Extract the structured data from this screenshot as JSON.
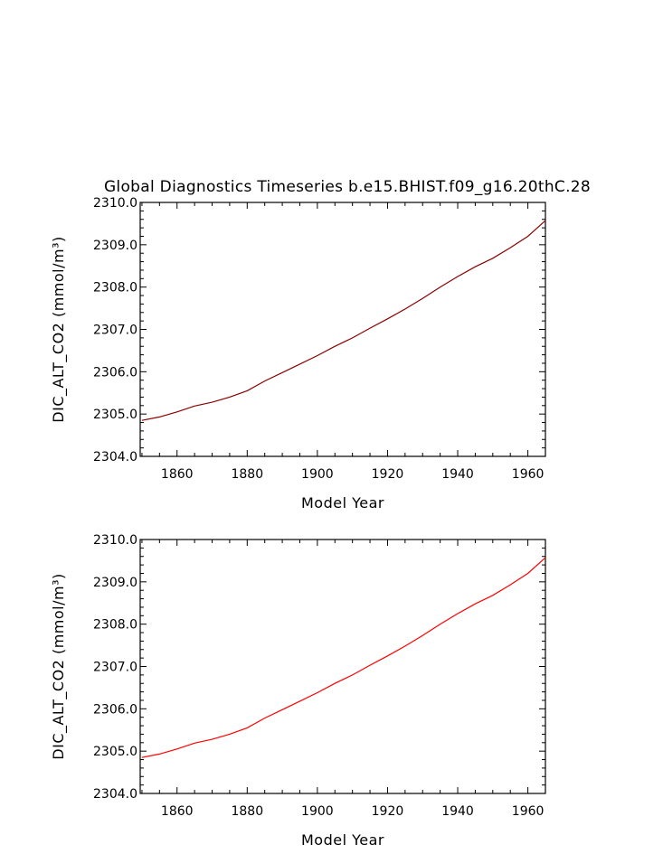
{
  "page": {
    "title": "Global Diagnostics Timeseries b.e15.BHIST.f09_g16.20thC.28"
  },
  "chart_data": [
    {
      "type": "line",
      "title": "Global Diagnostics Timeseries b.e15.BHIST.f09_g16.20thC.28",
      "xlabel": "Model Year",
      "ylabel": "DIC_ALT_CO2 (mmol/m³)",
      "xlim": [
        1849.5,
        1965
      ],
      "ylim": [
        2304.0,
        2310.0
      ],
      "x_ticks": [
        1860,
        1880,
        1900,
        1920,
        1940,
        1960
      ],
      "y_ticks": [
        "2304.0",
        "2305.0",
        "2306.0",
        "2307.0",
        "2308.0",
        "2309.0",
        "2310.0"
      ],
      "grid": false,
      "legend": "none",
      "series": [
        {
          "color": "#8b0000",
          "x": [
            1850,
            1855,
            1860,
            1865,
            1870,
            1875,
            1880,
            1885,
            1890,
            1895,
            1900,
            1905,
            1910,
            1915,
            1920,
            1925,
            1930,
            1935,
            1940,
            1945,
            1950,
            1955,
            1960,
            1965
          ],
          "y": [
            2304.85,
            2304.93,
            2305.05,
            2305.19,
            2305.28,
            2305.4,
            2305.55,
            2305.78,
            2305.98,
            2306.18,
            2306.38,
            2306.6,
            2306.8,
            2307.03,
            2307.25,
            2307.48,
            2307.73,
            2308.0,
            2308.25,
            2308.48,
            2308.68,
            2308.93,
            2309.2,
            2309.57
          ]
        }
      ]
    },
    {
      "type": "line",
      "title": "",
      "xlabel": "Model Year",
      "ylabel": "DIC_ALT_CO2 (mmol/m³)",
      "xlim": [
        1849.5,
        1965
      ],
      "ylim": [
        2304.0,
        2310.0
      ],
      "x_ticks": [
        1860,
        1880,
        1900,
        1920,
        1940,
        1960
      ],
      "y_ticks": [
        "2304.0",
        "2305.0",
        "2306.0",
        "2307.0",
        "2308.0",
        "2309.0",
        "2310.0"
      ],
      "grid": false,
      "legend": "none",
      "series": [
        {
          "color": "#ff0000",
          "x": [
            1850,
            1855,
            1860,
            1865,
            1870,
            1875,
            1880,
            1885,
            1890,
            1895,
            1900,
            1905,
            1910,
            1915,
            1920,
            1925,
            1930,
            1935,
            1940,
            1945,
            1950,
            1955,
            1960,
            1965
          ],
          "y": [
            2304.85,
            2304.93,
            2305.05,
            2305.19,
            2305.28,
            2305.4,
            2305.55,
            2305.78,
            2305.98,
            2306.18,
            2306.38,
            2306.6,
            2306.8,
            2307.03,
            2307.25,
            2307.48,
            2307.73,
            2308.0,
            2308.25,
            2308.48,
            2308.68,
            2308.93,
            2309.2,
            2309.57
          ]
        }
      ]
    }
  ]
}
